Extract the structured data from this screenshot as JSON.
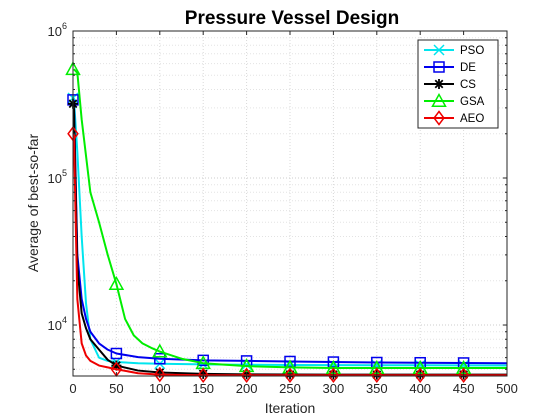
{
  "chart_data": {
    "type": "line",
    "title": "Pressure Vessel Design",
    "xlabel": "Iteration",
    "ylabel": "Average of best-so-far",
    "xlim": [
      0,
      500
    ],
    "ylim": [
      4500,
      1000000
    ],
    "y_scale": "log",
    "grid": true,
    "legend_position": "top-right",
    "x_ticks": [
      "0",
      "50",
      "100",
      "150",
      "200",
      "250",
      "300",
      "350",
      "400",
      "450",
      "500"
    ],
    "y_ticks": [
      {
        "base": "10",
        "exp": "4",
        "value": 10000
      },
      {
        "base": "10",
        "exp": "5",
        "value": 100000
      },
      {
        "base": "10",
        "exp": "6",
        "value": 1000000
      }
    ],
    "series": [
      {
        "name": "PSO",
        "color": "#00e5ee",
        "marker": "x",
        "x": [
          1,
          5,
          10,
          15,
          20,
          30,
          40,
          50,
          75,
          100,
          150,
          200,
          250,
          300,
          350,
          400,
          450,
          500
        ],
        "y": [
          350000,
          150000,
          40000,
          14000,
          8000,
          6000,
          5700,
          5600,
          5500,
          5450,
          5400,
          5370,
          5350,
          5340,
          5330,
          5320,
          5310,
          5300
        ]
      },
      {
        "name": "DE",
        "color": "#0000ee",
        "marker": "square",
        "x": [
          1,
          5,
          10,
          15,
          20,
          30,
          40,
          50,
          75,
          100,
          150,
          200,
          250,
          300,
          350,
          400,
          450,
          500
        ],
        "y": [
          340000,
          30000,
          15000,
          11000,
          9000,
          7500,
          6800,
          6400,
          6050,
          5900,
          5750,
          5700,
          5650,
          5600,
          5560,
          5540,
          5520,
          5500
        ]
      },
      {
        "name": "CS",
        "color": "#000000",
        "marker": "asterisk",
        "x": [
          1,
          5,
          10,
          15,
          20,
          30,
          40,
          50,
          75,
          100,
          150,
          200,
          250,
          300,
          350,
          400,
          450,
          500
        ],
        "y": [
          320000,
          25000,
          12000,
          9500,
          8000,
          6800,
          5800,
          5300,
          4900,
          4750,
          4650,
          4620,
          4610,
          4600,
          4600,
          4600,
          4600,
          4600
        ]
      },
      {
        "name": "GSA",
        "color": "#00ee00",
        "marker": "triangle",
        "x": [
          1,
          5,
          10,
          20,
          30,
          40,
          50,
          60,
          70,
          80,
          90,
          100,
          125,
          150,
          200,
          250,
          300,
          350,
          400,
          450,
          500
        ],
        "y": [
          550000,
          520000,
          250000,
          80000,
          50000,
          30000,
          19000,
          11000,
          8500,
          7500,
          7000,
          6600,
          5900,
          5500,
          5250,
          5150,
          5100,
          5100,
          5100,
          5100,
          5100
        ]
      },
      {
        "name": "AEO",
        "color": "#ee0000",
        "marker": "diamond",
        "x": [
          1,
          5,
          10,
          15,
          20,
          30,
          40,
          50,
          75,
          100,
          150,
          200,
          250,
          300,
          350,
          400,
          450,
          500
        ],
        "y": [
          200000,
          15000,
          7500,
          6200,
          5700,
          5300,
          5150,
          5000,
          4700,
          4600,
          4550,
          4550,
          4550,
          4550,
          4550,
          4550,
          4550,
          4550
        ]
      }
    ]
  }
}
